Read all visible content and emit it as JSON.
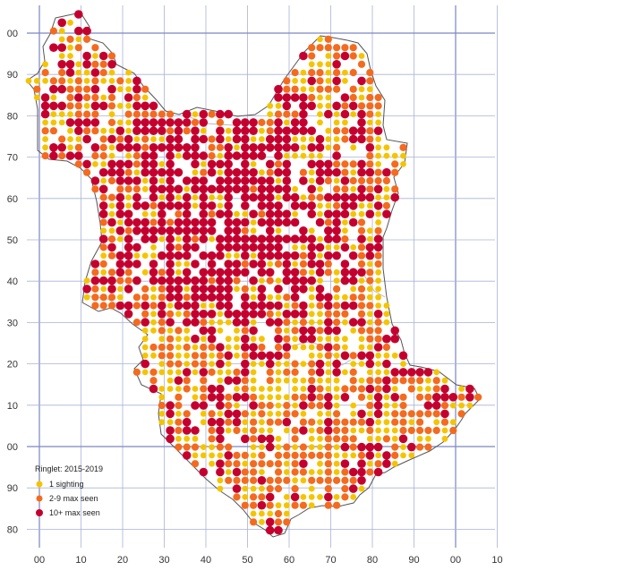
{
  "grid": {
    "x_labels": [
      "00",
      "10",
      "20",
      "30",
      "40",
      "50",
      "60",
      "70",
      "80",
      "90",
      "00",
      "10"
    ],
    "y_labels": [
      "00",
      "90",
      "80",
      "70",
      "60",
      "50",
      "40",
      "30",
      "20",
      "10",
      "00",
      "90",
      "80"
    ]
  },
  "legend": {
    "title": "Ringlet:  2015-2019",
    "items": [
      {
        "label": "1 sighting",
        "color": "#f5c400"
      },
      {
        "label": "2-9 max seen",
        "color": "#f46a1e"
      },
      {
        "label": "10+ max seen",
        "color": "#c4002f"
      }
    ]
  },
  "colors": {
    "grid_line": "#aab2d6",
    "major_line": "#7c86c0",
    "boundary": "#555555",
    "district": "#bbbbbb"
  }
}
